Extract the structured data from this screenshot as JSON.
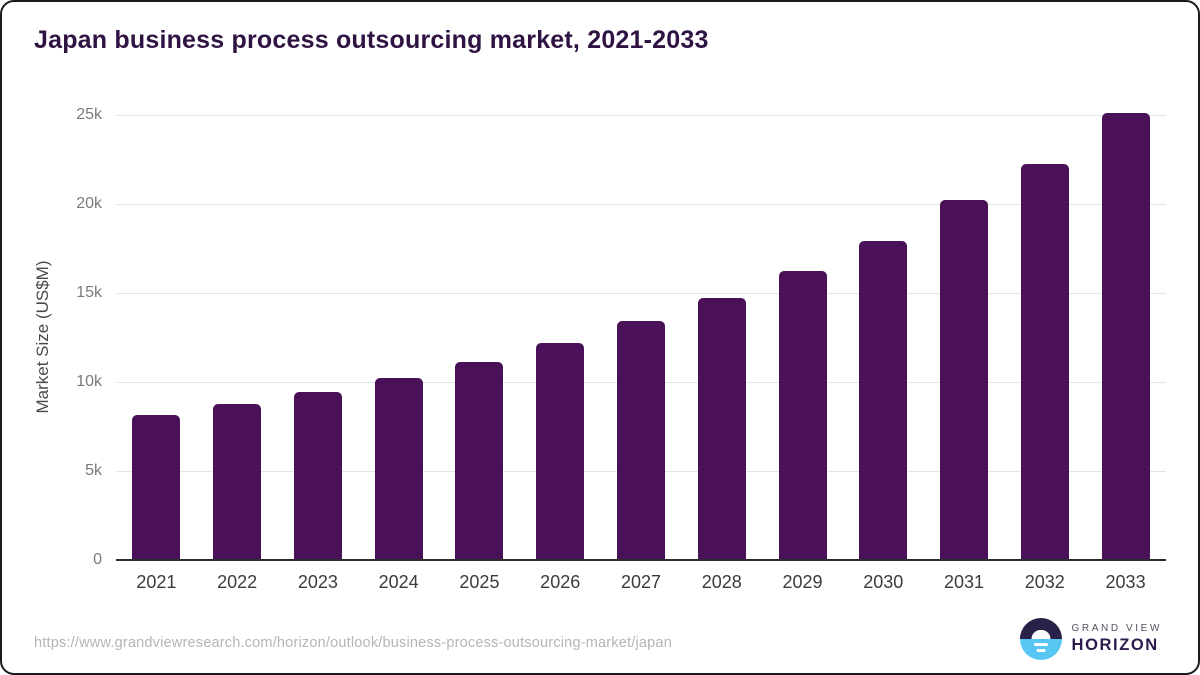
{
  "card": {
    "title": "Japan business process outsourcing market, 2021-2033"
  },
  "chart_data": {
    "type": "bar",
    "title": "Japan business process outsourcing market, 2021-2033",
    "categories": [
      "2021",
      "2022",
      "2023",
      "2024",
      "2025",
      "2026",
      "2027",
      "2028",
      "2029",
      "2030",
      "2031",
      "2032",
      "2033"
    ],
    "values": [
      8150,
      8750,
      9450,
      10250,
      11100,
      12200,
      13450,
      14700,
      16250,
      17900,
      20200,
      22250,
      25100
    ],
    "xlabel": "",
    "ylabel": "Market Size (US$M)",
    "ylim": [
      0,
      25000
    ],
    "yticks": [
      {
        "value": 0,
        "label": "0"
      },
      {
        "value": 5000,
        "label": "5k"
      },
      {
        "value": 10000,
        "label": "10k"
      },
      {
        "value": 15000,
        "label": "15k"
      },
      {
        "value": 20000,
        "label": "20k"
      },
      {
        "value": 25000,
        "label": "25k"
      }
    ],
    "grid": "horizontal",
    "legend": "none",
    "bar_color": "#4a1158"
  },
  "footer": {
    "source_url": "https://www.grandviewresearch.com/horizon/outlook/business-process-outsourcing-market/japan",
    "logo": {
      "brand_top": "GRAND VIEW",
      "brand_bottom": "HORIZON",
      "icon": "horizon-sun-icon",
      "circle_top_color": "#2a2148",
      "circle_bottom_color": "#58c6f3"
    }
  },
  "colors": {
    "bar": "#4a1158",
    "title": "#2e1343",
    "axis_line": "#2d2d2d",
    "gridline": "#e4e4e4",
    "y_tick_label": "#7a7a7a",
    "x_tick_label": "#3c3c3c",
    "url_text": "#b5b5b5",
    "card_border": "#1b1b1b"
  }
}
